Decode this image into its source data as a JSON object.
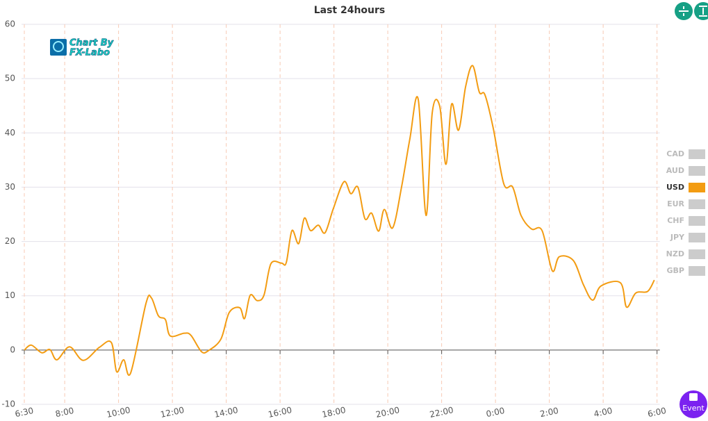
{
  "chart_data": {
    "type": "line",
    "title": "Last 24hours",
    "logo": [
      "Chart By",
      "FX-Labo"
    ],
    "button": "Event",
    "xlim": [
      6.5,
      29.9
    ],
    "xticks": [
      {
        "value": 6.5,
        "label": "6:30"
      },
      {
        "value": 8,
        "label": "8:00"
      },
      {
        "value": 10,
        "label": "10:00"
      },
      {
        "value": 12,
        "label": "12:00"
      },
      {
        "value": 14,
        "label": "14:00"
      },
      {
        "value": 16,
        "label": "16:00"
      },
      {
        "value": 18,
        "label": "18:00"
      },
      {
        "value": 20,
        "label": "20:00"
      },
      {
        "value": 22,
        "label": "22:00"
      },
      {
        "value": 24,
        "label": "0:00"
      },
      {
        "value": 26,
        "label": "2:00"
      },
      {
        "value": 28,
        "label": "4:00"
      },
      {
        "value": 30,
        "label": "6:00"
      }
    ],
    "ylim": [
      -10,
      60
    ],
    "yticks": [
      -10,
      0,
      10,
      20,
      30,
      40,
      50,
      60
    ],
    "grid": true,
    "series": [
      {
        "name": "CAD",
        "color": "#cccccc",
        "visible": false
      },
      {
        "name": "AUD",
        "color": "#cccccc",
        "visible": false
      },
      {
        "name": "USD",
        "color": "#f39c12",
        "visible": true,
        "x": [
          6.5,
          6.76,
          7.15,
          7.45,
          7.71,
          8.18,
          8.69,
          9.29,
          9.73,
          9.93,
          10.19,
          10.45,
          11.02,
          11.22,
          11.48,
          11.74,
          11.92,
          12.44,
          12.69,
          13.08,
          13.34,
          13.8,
          14.11,
          14.5,
          14.68,
          14.89,
          15.15,
          15.4,
          15.66,
          16.05,
          16.23,
          16.44,
          16.69,
          16.9,
          17.13,
          17.42,
          17.67,
          17.98,
          18.37,
          18.63,
          18.89,
          19.15,
          19.4,
          19.66,
          19.87,
          20.18,
          20.51,
          20.82,
          21.13,
          21.42,
          21.65,
          21.93,
          22.16,
          22.37,
          22.63,
          22.89,
          23.15,
          23.4,
          23.61,
          23.92,
          24.31,
          24.64,
          24.95,
          25.34,
          25.73,
          26.11,
          26.37,
          26.89,
          27.27,
          27.61,
          27.92,
          28.64,
          28.87,
          29.21,
          29.65,
          29.9
        ],
        "values": [
          0,
          0.9,
          -0.5,
          0.1,
          -1.8,
          0.6,
          -1.9,
          0.5,
          1.4,
          -4.0,
          -1.8,
          -4.2,
          8.6,
          9.6,
          6.3,
          5.6,
          2.6,
          3.1,
          2.7,
          -0.3,
          -0.1,
          2.0,
          6.9,
          7.8,
          5.8,
          10.1,
          9.1,
          10.1,
          15.9,
          16.0,
          16.1,
          22.0,
          19.6,
          24.3,
          22.0,
          23.0,
          21.6,
          26.1,
          31.0,
          28.8,
          30.0,
          24.2,
          25.2,
          21.9,
          25.9,
          22.5,
          30.0,
          38.9,
          46.2,
          24.8,
          43.7,
          44.9,
          34.2,
          45.3,
          40.5,
          48.5,
          52.4,
          47.5,
          47.0,
          40.8,
          30.6,
          30.0,
          24.8,
          22.3,
          22.0,
          14.6,
          17.2,
          16.5,
          12.0,
          9.2,
          11.8,
          12.4,
          7.9,
          10.5,
          10.8,
          12.9
        ]
      },
      {
        "name": "EUR",
        "color": "#cccccc",
        "visible": false
      },
      {
        "name": "CHF",
        "color": "#cccccc",
        "visible": false
      },
      {
        "name": "JPY",
        "color": "#cccccc",
        "visible": false
      },
      {
        "name": "NZD",
        "color": "#cccccc",
        "visible": false
      },
      {
        "name": "GBP",
        "color": "#cccccc",
        "visible": false
      }
    ]
  }
}
